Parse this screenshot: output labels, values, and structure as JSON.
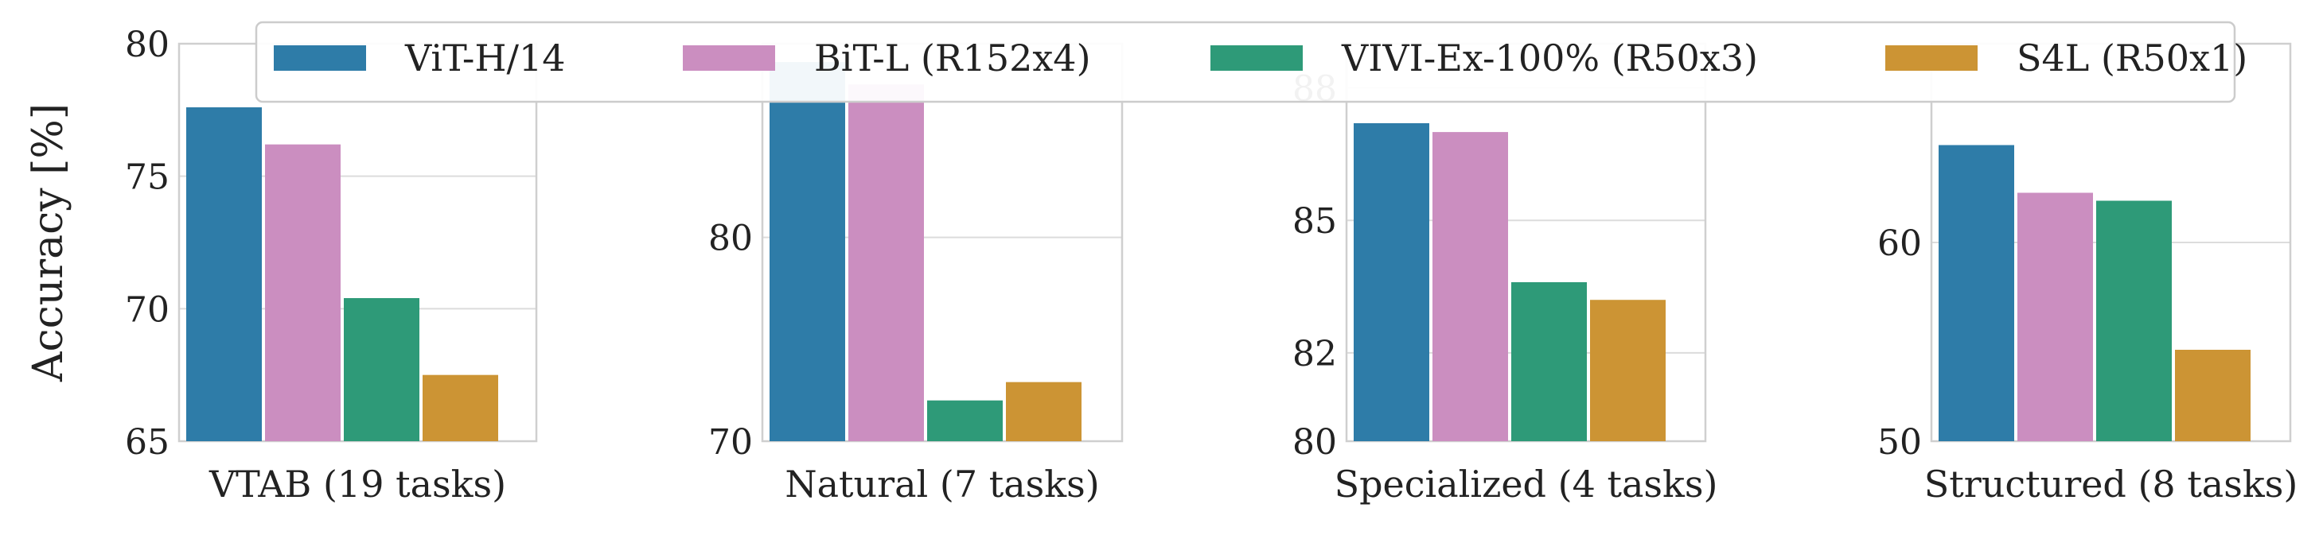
{
  "chart_data": {
    "type": "bar",
    "ylabel": "Accuracy [%]",
    "grid": true,
    "legend_position": "top",
    "series": [
      {
        "name": "ViT-H/14",
        "color": "#2e7ca8"
      },
      {
        "name": "BiT-L (R152x4)",
        "color": "#cb8ec0"
      },
      {
        "name": "VIVI-Ex-100% (R50x3)",
        "color": "#2e9a78"
      },
      {
        "name": "S4L (R50x1)",
        "color": "#cc9434"
      }
    ],
    "panels": [
      {
        "title": "VTAB (19 tasks)",
        "ylim": [
          65,
          80
        ],
        "yticks": [
          "65",
          "70",
          "75",
          "80"
        ],
        "values": [
          77.6,
          76.2,
          70.4,
          67.5
        ]
      },
      {
        "title": "Natural (7 tasks)",
        "ylim": [
          70,
          89.5
        ],
        "yticks": [
          "70",
          "80"
        ],
        "values": [
          88.6,
          87.5,
          72.0,
          72.9
        ]
      },
      {
        "title": "Specialized (4 tasks)",
        "ylim": [
          80,
          89
        ],
        "yticks": [
          "80",
          "82",
          "85",
          "88"
        ],
        "values": [
          87.2,
          87.0,
          83.6,
          83.2
        ]
      },
      {
        "title": "Structured (8 tasks)",
        "ylim": [
          50,
          70
        ],
        "yticks": [
          "50",
          "60"
        ],
        "values": [
          64.9,
          62.5,
          62.1,
          54.6
        ]
      }
    ]
  }
}
